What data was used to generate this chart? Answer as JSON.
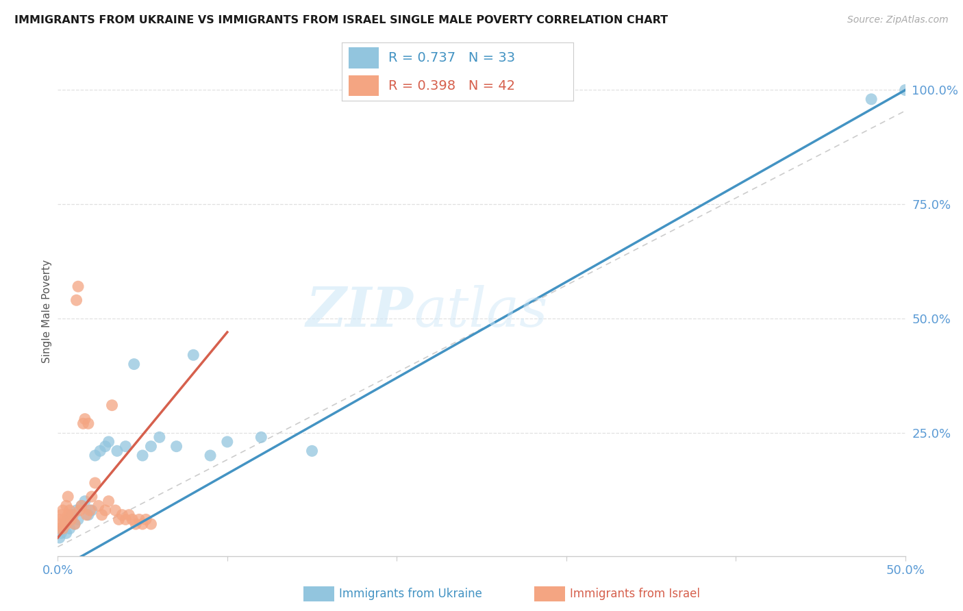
{
  "title": "IMMIGRANTS FROM UKRAINE VS IMMIGRANTS FROM ISRAEL SINGLE MALE POVERTY CORRELATION CHART",
  "source": "Source: ZipAtlas.com",
  "ylabel": "Single Male Poverty",
  "xlim": [
    0,
    0.5
  ],
  "ylim": [
    -0.02,
    1.05
  ],
  "legend_ukraine": "Immigrants from Ukraine",
  "legend_israel": "Immigrants from Israel",
  "R_ukraine": 0.737,
  "N_ukraine": 33,
  "R_israel": 0.398,
  "N_israel": 42,
  "color_ukraine": "#92c5de",
  "color_israel": "#f4a582",
  "color_ukraine_line": "#4393c3",
  "color_israel_line": "#d6604d",
  "color_axis_text": "#5b9bd5",
  "watermark_zip": "ZIP",
  "watermark_atlas": "atlas",
  "ukraine_x": [
    0.001,
    0.002,
    0.003,
    0.004,
    0.005,
    0.006,
    0.007,
    0.008,
    0.01,
    0.011,
    0.012,
    0.014,
    0.016,
    0.018,
    0.02,
    0.022,
    0.025,
    0.028,
    0.03,
    0.035,
    0.04,
    0.045,
    0.05,
    0.055,
    0.06,
    0.07,
    0.08,
    0.09,
    0.1,
    0.12,
    0.15,
    0.48,
    0.5
  ],
  "ukraine_y": [
    0.02,
    0.03,
    0.04,
    0.05,
    0.03,
    0.06,
    0.04,
    0.07,
    0.05,
    0.08,
    0.06,
    0.09,
    0.1,
    0.07,
    0.08,
    0.2,
    0.21,
    0.22,
    0.23,
    0.21,
    0.22,
    0.4,
    0.2,
    0.22,
    0.24,
    0.22,
    0.42,
    0.2,
    0.23,
    0.24,
    0.21,
    0.98,
    1.0
  ],
  "israel_x": [
    0.001,
    0.001,
    0.002,
    0.002,
    0.003,
    0.003,
    0.004,
    0.005,
    0.005,
    0.006,
    0.006,
    0.007,
    0.008,
    0.009,
    0.01,
    0.011,
    0.012,
    0.013,
    0.014,
    0.015,
    0.016,
    0.017,
    0.018,
    0.019,
    0.02,
    0.022,
    0.024,
    0.026,
    0.028,
    0.03,
    0.032,
    0.034,
    0.036,
    0.038,
    0.04,
    0.042,
    0.044,
    0.046,
    0.048,
    0.05,
    0.052,
    0.055
  ],
  "israel_y": [
    0.04,
    0.06,
    0.05,
    0.07,
    0.04,
    0.08,
    0.06,
    0.05,
    0.09,
    0.07,
    0.11,
    0.08,
    0.06,
    0.07,
    0.05,
    0.54,
    0.57,
    0.08,
    0.09,
    0.27,
    0.28,
    0.07,
    0.27,
    0.08,
    0.11,
    0.14,
    0.09,
    0.07,
    0.08,
    0.1,
    0.31,
    0.08,
    0.06,
    0.07,
    0.06,
    0.07,
    0.06,
    0.05,
    0.06,
    0.05,
    0.06,
    0.05
  ],
  "ref_line_color": "#cccccc",
  "grid_color": "#e0e0e0",
  "spine_color": "#cccccc"
}
